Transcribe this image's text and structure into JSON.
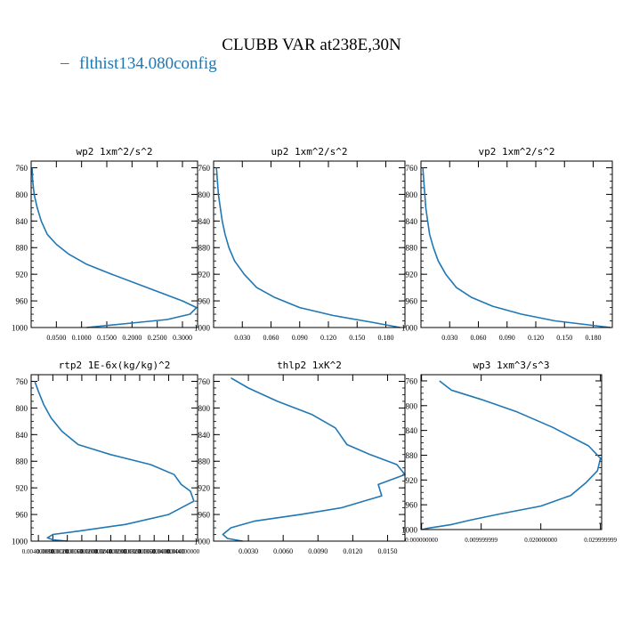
{
  "figure": {
    "title": "CLUBB VAR at238E,30N",
    "legend_label": "flthist134.080config",
    "line_color": "#1f77b4"
  },
  "chart_data": [
    {
      "type": "line",
      "title": "wp2   1xm^2/s^2",
      "xlim": [
        0,
        0.33
      ],
      "ylim": [
        1000,
        750
      ],
      "yticks": [
        760,
        800,
        840,
        880,
        920,
        960,
        1000
      ],
      "xticks": [
        0.05,
        0.1,
        0.15,
        0.2,
        0.25,
        0.3
      ],
      "xtick_labels": [
        "0.0500",
        "0.1000",
        "0.1500",
        "0.2000",
        "0.2500",
        "0.3000"
      ],
      "series": [
        {
          "x": [
            0.002,
            0.003,
            0.006,
            0.012,
            0.02,
            0.032,
            0.05,
            0.075,
            0.11,
            0.16,
            0.23,
            0.3,
            0.328,
            0.315,
            0.27,
            0.19,
            0.11
          ],
          "y": [
            760,
            780,
            800,
            820,
            840,
            860,
            875,
            890,
            905,
            920,
            940,
            960,
            970,
            980,
            988,
            994,
            1000
          ]
        }
      ]
    },
    {
      "type": "line",
      "title": "up2   1xm^2/s^2",
      "xlim": [
        0,
        0.2
      ],
      "ylim": [
        1000,
        750
      ],
      "yticks": [
        760,
        800,
        840,
        880,
        920,
        960,
        1000
      ],
      "xticks": [
        0.03,
        0.06,
        0.09,
        0.12,
        0.15,
        0.18
      ],
      "xtick_labels": [
        "0.030",
        "0.060",
        "0.090",
        "0.120",
        "0.150",
        "0.180"
      ],
      "series": [
        {
          "x": [
            0.003,
            0.004,
            0.005,
            0.007,
            0.009,
            0.012,
            0.016,
            0.022,
            0.032,
            0.045,
            0.064,
            0.09,
            0.125,
            0.165,
            0.195
          ],
          "y": [
            760,
            780,
            800,
            820,
            840,
            860,
            880,
            900,
            920,
            940,
            955,
            970,
            982,
            992,
            1000
          ]
        }
      ]
    },
    {
      "type": "line",
      "title": "vp2   1xm^2/s^2",
      "xlim": [
        0,
        0.2
      ],
      "ylim": [
        1000,
        750
      ],
      "yticks": [
        760,
        800,
        840,
        880,
        920,
        960,
        1000
      ],
      "xticks": [
        0.03,
        0.06,
        0.09,
        0.12,
        0.15,
        0.18
      ],
      "xtick_labels": [
        "0.030",
        "0.060",
        "0.090",
        "0.120",
        "0.150",
        "0.180"
      ],
      "series": [
        {
          "x": [
            0.002,
            0.003,
            0.004,
            0.005,
            0.007,
            0.009,
            0.013,
            0.018,
            0.026,
            0.037,
            0.053,
            0.075,
            0.105,
            0.14,
            0.175,
            0.198
          ],
          "y": [
            760,
            780,
            800,
            820,
            840,
            860,
            880,
            900,
            920,
            940,
            955,
            968,
            980,
            990,
            996,
            1000
          ]
        }
      ]
    },
    {
      "type": "line",
      "title": "rtp2   1E-6x(kg/kg)^2",
      "xlim": [
        0.002,
        0.048
      ],
      "ylim": [
        1000,
        750
      ],
      "yticks": [
        760,
        800,
        840,
        880,
        920,
        960,
        1000
      ],
      "xticks": [
        0.004,
        0.008,
        0.012,
        0.016,
        0.02,
        0.024,
        0.028,
        0.032,
        0.036,
        0.04,
        0.044
      ],
      "xtick_labels": [
        "0.004000000",
        "0.008000000",
        "0.012000000",
        "0.016000000",
        "0.020000000",
        "0.024000000",
        "0.028000000",
        "0.032000000",
        "0.036000000",
        "0.040000000",
        "0.044000000"
      ],
      "series": [
        {
          "x": [
            0.003,
            0.004,
            0.0055,
            0.0075,
            0.0105,
            0.015,
            0.024,
            0.035,
            0.0415,
            0.0435,
            0.046,
            0.047,
            0.04,
            0.028,
            0.015,
            0.008,
            0.0065,
            0.008,
            0.012
          ],
          "y": [
            760,
            775,
            795,
            815,
            835,
            855,
            870,
            885,
            900,
            915,
            925,
            940,
            960,
            975,
            985,
            990,
            995,
            998,
            1000
          ]
        }
      ]
    },
    {
      "type": "line",
      "title": "thlp2   1xK^2",
      "xlim": [
        0,
        0.0165
      ],
      "ylim": [
        1000,
        750
      ],
      "yticks": [
        760,
        800,
        840,
        880,
        920,
        960,
        1000
      ],
      "xticks": [
        0.003,
        0.006,
        0.009,
        0.012,
        0.015
      ],
      "xtick_labels": [
        "0.0030",
        "0.0060",
        "0.0090",
        "0.0120",
        "0.0150"
      ],
      "series": [
        {
          "x": [
            0.0015,
            0.003,
            0.0055,
            0.0085,
            0.0105,
            0.0115,
            0.0135,
            0.0158,
            0.0165,
            0.0142,
            0.0145,
            0.011,
            0.0075,
            0.0035,
            0.0015,
            0.0008,
            0.0012,
            0.0025
          ],
          "y": [
            755,
            770,
            790,
            810,
            830,
            855,
            870,
            885,
            900,
            915,
            932,
            950,
            960,
            970,
            980,
            990,
            996,
            1000
          ]
        }
      ]
    },
    {
      "type": "line",
      "title": "wp3   1xm^3/s^3",
      "xlim": [
        -0.0001,
        0.0302
      ],
      "ylim": [
        1000,
        750
      ],
      "yticks": [
        760,
        800,
        840,
        880,
        920,
        960,
        1000
      ],
      "xticks": [
        0.0,
        0.00999999,
        0.02,
        0.02999999
      ],
      "xtick_labels": [
        "0.000000000",
        "0.009999999",
        "0.020000000",
        "0.029999999"
      ],
      "series": [
        {
          "x": [
            0.003,
            0.005,
            0.01,
            0.016,
            0.022,
            0.028,
            0.03,
            0.0295,
            0.0275,
            0.025,
            0.02,
            0.013,
            0.008,
            0.005,
            0.001,
            0.0
          ],
          "y": [
            760,
            775,
            790,
            810,
            835,
            865,
            885,
            905,
            925,
            945,
            962,
            975,
            985,
            992,
            998,
            1000
          ]
        }
      ]
    }
  ]
}
